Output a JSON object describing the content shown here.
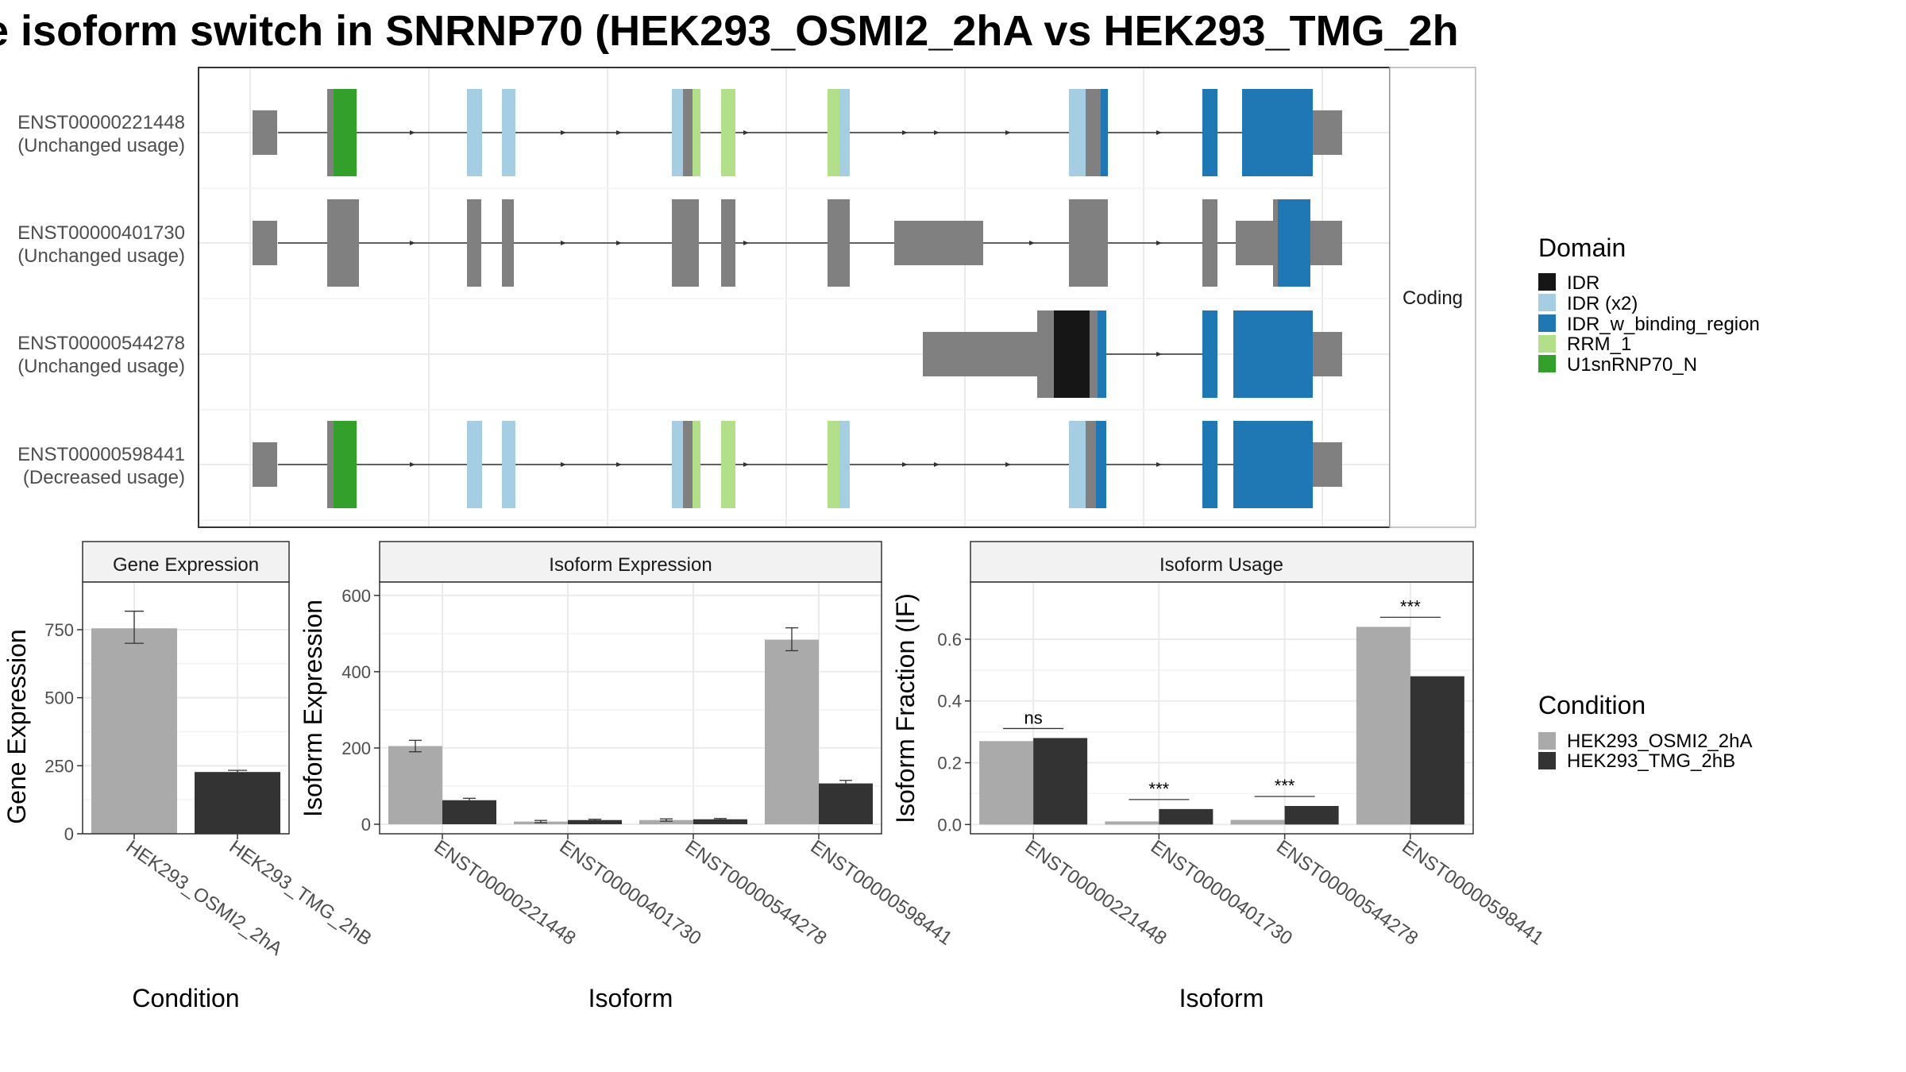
{
  "title": "e isoform switch in SNRNP70 (HEK293_OSMI2_2hA vs HEK293_TMG_2h",
  "colors": {
    "utr": "#808080",
    "IDR": "#161616",
    "IDR_x2": "#a6cee3",
    "IDR_w_binding_region": "#1f78b4",
    "RRM_1": "#b2df8a",
    "U1snRNP70_N": "#33a02c",
    "cond1": "#aaaaaa",
    "cond2": "#333333"
  },
  "structure_panel": {
    "strip_label": "Coding",
    "transcripts": [
      {
        "id": "ENST00000221448",
        "usage": "(Unchanged usage)"
      },
      {
        "id": "ENST00000401730",
        "usage": "(Unchanged usage)"
      },
      {
        "id": "ENST00000544278",
        "usage": "(Unchanged usage)"
      },
      {
        "id": "ENST00000598441",
        "usage": "(Decreased usage)"
      }
    ]
  },
  "legend_domain": {
    "title": "Domain",
    "items": [
      {
        "label": "IDR",
        "color_key": "IDR"
      },
      {
        "label": "IDR (x2)",
        "color_key": "IDR_x2"
      },
      {
        "label": "IDR_w_binding_region",
        "color_key": "IDR_w_binding_region"
      },
      {
        "label": "RRM_1",
        "color_key": "RRM_1"
      },
      {
        "label": "U1snRNP70_N",
        "color_key": "U1snRNP70_N"
      }
    ]
  },
  "legend_condition": {
    "title": "Condition",
    "items": [
      {
        "label": "HEK293_OSMI2_2hA",
        "color_key": "cond1"
      },
      {
        "label": "HEK293_TMG_2hB",
        "color_key": "cond2"
      }
    ]
  },
  "chart_data": [
    {
      "type": "bar",
      "panel_title": "Gene Expression",
      "xlabel": "Condition",
      "ylabel": "Gene Expression",
      "categories": [
        "HEK293_OSMI2_2hA",
        "HEK293_TMG_2hB"
      ],
      "values": [
        755,
        227
      ],
      "errors": [
        [
          700,
          818
        ],
        [
          221,
          233
        ]
      ],
      "ylim": [
        0,
        925
      ],
      "yticks": [
        0,
        250,
        500,
        750
      ],
      "grid": true
    },
    {
      "type": "bar",
      "panel_title": "Isoform Expression",
      "xlabel": "Isoform",
      "ylabel": "Isoform Expression",
      "categories": [
        "ENST00000221448",
        "ENST00000401730",
        "ENST00000544278",
        "ENST00000598441"
      ],
      "series": [
        {
          "name": "HEK293_OSMI2_2hA",
          "values": [
            205,
            7,
            11,
            484
          ],
          "errors": [
            [
              190,
              220
            ],
            [
              4,
              10
            ],
            [
              8,
              14
            ],
            [
              455,
              515
            ]
          ]
        },
        {
          "name": "HEK293_TMG_2hB",
          "values": [
            63,
            11,
            13,
            107
          ],
          "errors": [
            [
              58,
              68
            ],
            [
              9,
              13
            ],
            [
              11,
              15
            ],
            [
              99,
              115
            ]
          ]
        }
      ],
      "ylim": [
        -25,
        635
      ],
      "yticks": [
        0,
        200,
        400,
        600
      ],
      "grid": true
    },
    {
      "type": "bar",
      "panel_title": "Isoform Usage",
      "xlabel": "Isoform",
      "ylabel": "Isoform Fraction (IF)",
      "categories": [
        "ENST00000221448",
        "ENST00000401730",
        "ENST00000544278",
        "ENST00000598441"
      ],
      "series": [
        {
          "name": "HEK293_OSMI2_2hA",
          "values": [
            0.27,
            0.01,
            0.015,
            0.64
          ]
        },
        {
          "name": "HEK293_TMG_2hB",
          "values": [
            0.28,
            0.05,
            0.06,
            0.48
          ]
        }
      ],
      "significance": [
        "ns",
        "***",
        "***",
        "***"
      ],
      "ylim": [
        -0.03,
        0.785
      ],
      "yticks": [
        0.0,
        0.2,
        0.4,
        0.6
      ],
      "ytick_labels": [
        "0.0",
        "0.2",
        "0.4",
        "0.6"
      ],
      "grid": true
    }
  ]
}
